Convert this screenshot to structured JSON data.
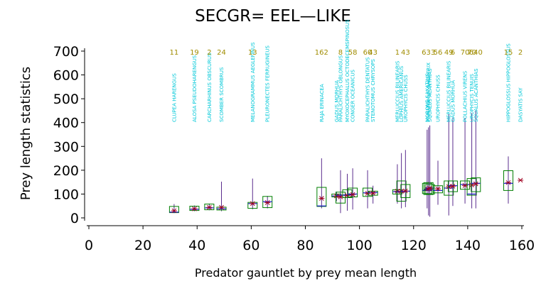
{
  "chart_data": {
    "type": "box",
    "title": "SECGR= EEL—LIKE",
    "xlabel": "Predator gauntlet by prey mean length",
    "ylabel": "Prey length statistics",
    "xlim": [
      0,
      160
    ],
    "ylim": [
      0,
      700
    ],
    "x_ticks": [
      "0",
      "20",
      "40",
      "60",
      "80",
      "100",
      "120",
      "140",
      "160"
    ],
    "y_ticks": [
      "0",
      "100",
      "200",
      "300",
      "400",
      "500",
      "600",
      "700"
    ],
    "grid": false,
    "colors": {
      "box": "#007f00",
      "whisker": "#5b2d8e",
      "median": "#1a1acc",
      "mean_marker": "#a00020",
      "species_label": "#00c8d8",
      "count_label": "#a08c00"
    },
    "series": [
      {
        "x": 31.5,
        "species": "CLUPEA HARENGUS",
        "n": "11",
        "q1": 22,
        "median": 24,
        "q3": 48,
        "min": 20,
        "max": 58,
        "mean": 30
      },
      {
        "x": 39,
        "species": "ALOSA PSEUDOHARENGUS",
        "n": "19",
        "q1": 31,
        "median": 36,
        "q3": 49,
        "min": 28,
        "max": 52,
        "mean": 38
      },
      {
        "x": 44.5,
        "species": "CARCHARHINUS OBSCURUS",
        "n": "2",
        "q1": 34,
        "median": 42,
        "q3": 58,
        "min": 32,
        "max": 60,
        "mean": 44
      },
      {
        "x": 49,
        "species": "SCOMBER SCOMBRUS",
        "n": "24",
        "q1": 33,
        "median": 38,
        "q3": 45,
        "min": 28,
        "max": 152,
        "mean": 44
      },
      {
        "x": 60.5,
        "species": "MELANOGRAMMUS AEGLEFINUS",
        "n": "13",
        "q1": 40,
        "median": 60,
        "q3": 65,
        "min": 36,
        "max": 165,
        "mean": 60
      },
      {
        "x": 66,
        "species": "PLEURONECTES FERRUGINEUS",
        "n": "",
        "q1": 43,
        "median": 68,
        "q3": 90,
        "min": 40,
        "max": 92,
        "mean": 64
      },
      {
        "x": 86,
        "species": "RAJA ERINACEA",
        "n": "162",
        "q1": 48,
        "median": 50,
        "q3": 128,
        "min": 40,
        "max": 250,
        "mean": 82
      },
      {
        "x": 91.5,
        "species": "GADUS MORHUA",
        "n": "",
        "q1": 88,
        "median": 92,
        "q3": 100,
        "min": 70,
        "max": 110,
        "mean": 92
      },
      {
        "x": 93,
        "species": "PARALICHTHYS OBLONGUS",
        "n": "8",
        "q1": 62,
        "median": 95,
        "q3": 108,
        "min": 20,
        "max": 200,
        "mean": 88
      },
      {
        "x": 95.5,
        "species": "MYOXOCEPHALUS OCTODECEMSPINOSUS",
        "n": "",
        "q1": 85,
        "median": 96,
        "q3": 118,
        "min": 30,
        "max": 185,
        "mean": 94
      },
      {
        "x": 97.5,
        "species": "CONGER OCEANICUS",
        "n": "58",
        "q1": 88,
        "median": 100,
        "q3": 125,
        "min": 35,
        "max": 208,
        "mean": 98
      },
      {
        "x": 103,
        "species": "PARALICHTHYS DENTATUS",
        "n": "60",
        "q1": 90,
        "median": 105,
        "q3": 125,
        "min": 40,
        "max": 200,
        "mean": 103
      },
      {
        "x": 105,
        "species": "STENOTOMUS CHRYSOPS",
        "n": "43",
        "q1": 95,
        "median": 106,
        "q3": 112,
        "min": 60,
        "max": 135,
        "mean": 104
      },
      {
        "x": 114,
        "species": "MERLUCCIUS BILINEARIS",
        "n": "1",
        "q1": 100,
        "median": 110,
        "q3": 118,
        "min": 60,
        "max": 225,
        "mean": 112
      },
      {
        "x": 115.5,
        "species": "LOPHIUS AMERICANUS",
        "n": "",
        "q1": 70,
        "median": 110,
        "q3": 155,
        "min": 40,
        "max": 272,
        "mean": 112
      },
      {
        "x": 117,
        "species": "UROPHYCIS CHUSS",
        "n": "43",
        "q1": 85,
        "median": 112,
        "q3": 140,
        "min": 45,
        "max": 285,
        "mean": 113
      },
      {
        "x": 125,
        "species": "MORONE SAXATILIS",
        "n": "",
        "q1": 102,
        "median": 115,
        "q3": 145,
        "min": 40,
        "max": 370,
        "mean": 121
      },
      {
        "x": 125.5,
        "species": "POMATOMUS SALTATRIX",
        "n": "633",
        "q1": 98,
        "median": 118,
        "q3": 148,
        "min": 10,
        "max": 380,
        "mean": 122
      },
      {
        "x": 126,
        "species": "SQUALUS ACANTHIAS",
        "n": "",
        "q1": 100,
        "median": 125,
        "q3": 140,
        "min": 5,
        "max": 388,
        "mean": 124
      },
      {
        "x": 129,
        "species": "UROPHYCIS CHUSS",
        "n": "56",
        "q1": 105,
        "median": 115,
        "q3": 135,
        "min": 55,
        "max": 240,
        "mean": 122
      },
      {
        "x": 133,
        "species": "MERLUCCIUS BILINEARIS",
        "n": "49",
        "q1": 95,
        "median": 125,
        "q3": 155,
        "min": 10,
        "max": 435,
        "mean": 131
      },
      {
        "x": 134.5,
        "species": "GADUS MORHUA",
        "n": "6",
        "q1": 110,
        "median": 135,
        "q3": 155,
        "min": 50,
        "max": 420,
        "mean": 133
      },
      {
        "x": 139,
        "species": "POLLACHIUS VIRENS",
        "n": "70",
        "q1": 120,
        "median": 140,
        "q3": 155,
        "min": 60,
        "max": 420,
        "mean": 136
      },
      {
        "x": 141.5,
        "species": "UROPHYCIS TENUIS",
        "n": "70",
        "q1": 95,
        "median": 100,
        "q3": 165,
        "min": 40,
        "max": 440,
        "mean": 138
      },
      {
        "x": 143,
        "species": "SQUALUS ACANTHIAS",
        "n": "640",
        "q1": 110,
        "median": 145,
        "q3": 168,
        "min": 40,
        "max": 450,
        "mean": 143
      },
      {
        "x": 155,
        "species": "HIPPOGLOSSUS HIPPOGLOSSUS",
        "n": "15",
        "q1": 115,
        "median": 145,
        "q3": 198,
        "min": 60,
        "max": 258,
        "mean": 148
      },
      {
        "x": 159.5,
        "species": "DASYATIS SAY",
        "n": "2",
        "mean": 158
      }
    ]
  }
}
